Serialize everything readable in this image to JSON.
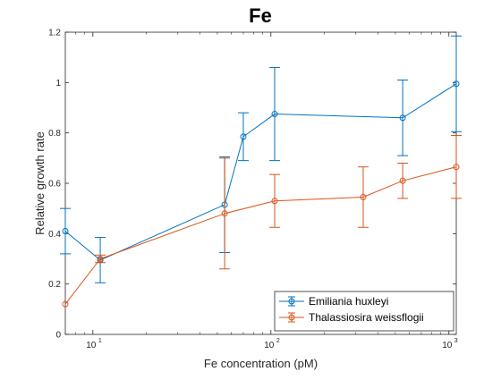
{
  "chart_data": {
    "type": "line",
    "title": "Fe",
    "xlabel": "Fe concentration (pM)",
    "ylabel": "Relative growth rate",
    "x_scale": "log",
    "xlim": [
      7,
      1100
    ],
    "ylim": [
      0,
      1.2
    ],
    "y_ticks": [
      0,
      0.2,
      0.4,
      0.6,
      0.8,
      1,
      1.2
    ],
    "y_tick_labels": [
      "0",
      "0.2",
      "0.4",
      "0.6",
      "0.8",
      "1",
      "1.2"
    ],
    "x_ticks": [
      10,
      100,
      1000
    ],
    "x_tick_labels": [
      {
        "base": "10",
        "exp": "1"
      },
      {
        "base": "10",
        "exp": "2"
      },
      {
        "base": "10",
        "exp": "3"
      }
    ],
    "grid": false,
    "legend_position": "bottom-right",
    "series": [
      {
        "name": "Emiliania huxleyi",
        "color": "#0072BD",
        "marker": "circle",
        "points": [
          {
            "x": 7,
            "y": 0.41,
            "err": 0.09
          },
          {
            "x": 11,
            "y": 0.295,
            "err": 0.09
          },
          {
            "x": 55,
            "y": 0.515,
            "err": 0.19
          },
          {
            "x": 70,
            "y": 0.785,
            "err": 0.095
          },
          {
            "x": 105,
            "y": 0.875,
            "err": 0.185
          },
          {
            "x": 550,
            "y": 0.86,
            "err": 0.15
          },
          {
            "x": 1100,
            "y": 0.995,
            "err": 0.19
          }
        ]
      },
      {
        "name": "Thalassiosira weissflogii",
        "color": "#D95319",
        "marker": "circle",
        "points": [
          {
            "x": 7,
            "y": 0.12,
            "err": 0
          },
          {
            "x": 11,
            "y": 0.3,
            "err": 0.015
          },
          {
            "x": 55,
            "y": 0.48,
            "err": 0.22
          },
          {
            "x": 105,
            "y": 0.53,
            "err": 0.105
          },
          {
            "x": 330,
            "y": 0.545,
            "err": 0.12
          },
          {
            "x": 550,
            "y": 0.61,
            "err": 0.07
          },
          {
            "x": 1100,
            "y": 0.665,
            "err": 0.125
          }
        ]
      }
    ]
  }
}
